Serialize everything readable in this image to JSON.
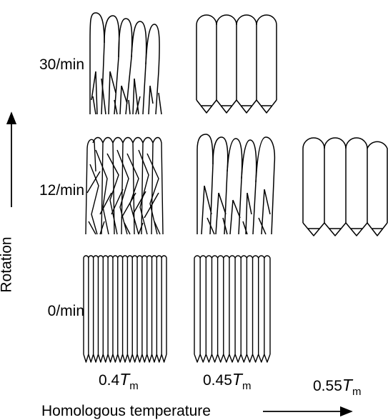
{
  "rows": [
    {
      "key": "r30",
      "label": "30/min"
    },
    {
      "key": "r12",
      "label": "12/min"
    },
    {
      "key": "r0",
      "label": "0/min"
    }
  ],
  "columns": [
    {
      "key": "c04",
      "value": "0.4",
      "symbol": "T",
      "subscript": "m"
    },
    {
      "key": "c045",
      "value": "0.45",
      "symbol": "T",
      "subscript": "m"
    },
    {
      "key": "c055",
      "value": "0.55",
      "symbol": "T",
      "subscript": "m"
    }
  ],
  "axes": {
    "y_label": "Rotation",
    "x_label": "Homologous temperature"
  },
  "cells": [
    {
      "row": "0/min",
      "column": "0.4",
      "structure": "fine columnar",
      "grain_count": 17
    },
    {
      "row": "0/min",
      "column": "0.45",
      "structure": "fine columnar",
      "grain_count": 13
    },
    {
      "row": "12/min",
      "column": "0.4",
      "structure": "tangled fine grains"
    },
    {
      "row": "12/min",
      "column": "0.45",
      "structure": "branched columns"
    },
    {
      "row": "12/min",
      "column": "0.55",
      "structure": "coarse columnar",
      "grain_count": 4
    },
    {
      "row": "30/min",
      "column": "0.4",
      "structure": "branched columns"
    },
    {
      "row": "30/min",
      "column": "0.45",
      "structure": "coarse columnar",
      "grain_count": 4
    }
  ],
  "colors": {
    "line": "#000000",
    "background": "#ffffff"
  }
}
